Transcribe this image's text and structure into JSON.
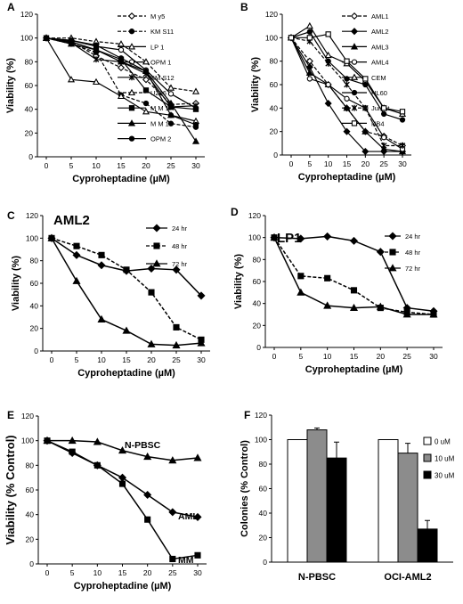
{
  "chart_data": [
    {
      "type": "line",
      "panel_label": "A",
      "xlabel": "Cyproheptadine (µM)",
      "ylabel": "Viability (%)",
      "xlim": [
        0,
        30
      ],
      "ylim": [
        0,
        120
      ],
      "xticks": [
        0,
        5,
        10,
        15,
        20,
        25,
        30
      ],
      "yticks": [
        0,
        20,
        40,
        60,
        80,
        100,
        120
      ],
      "legend_position": "right",
      "x": [
        0,
        5,
        10,
        15,
        20,
        25,
        30
      ],
      "series": [
        {
          "name": "M y5",
          "marker": "diamond-open",
          "dash": true,
          "values": [
            100,
            97,
            85,
            75,
            65,
            44,
            45
          ]
        },
        {
          "name": "KM S11",
          "marker": "circle-filled",
          "dash": true,
          "values": [
            100,
            95,
            88,
            52,
            45,
            28,
            25
          ]
        },
        {
          "name": "LP 1",
          "marker": "triangle-open",
          "dash": false,
          "values": [
            100,
            65,
            63,
            51,
            38,
            35,
            30
          ]
        },
        {
          "name": "OPM 1",
          "marker": "circle-open",
          "dash": false,
          "values": [
            100,
            98,
            93,
            90,
            73,
            53,
            41
          ]
        },
        {
          "name": "KM S12",
          "marker": "star",
          "dash": false,
          "values": [
            100,
            96,
            82,
            80,
            70,
            42,
            43
          ]
        },
        {
          "name": "U266",
          "marker": "triangle-open",
          "dash": true,
          "values": [
            100,
            100,
            97,
            95,
            80,
            58,
            55
          ]
        },
        {
          "name": "M M 1R",
          "marker": "square-filled",
          "dash": false,
          "values": [
            100,
            97,
            90,
            82,
            56,
            42,
            40
          ]
        },
        {
          "name": "M M 1S",
          "marker": "triangle-filled",
          "dash": false,
          "values": [
            100,
            95,
            90,
            80,
            72,
            45,
            13
          ]
        },
        {
          "name": "OPM 2",
          "marker": "circle-filled",
          "dash": false,
          "values": [
            100,
            98,
            94,
            83,
            72,
            35,
            27
          ]
        }
      ]
    },
    {
      "type": "line",
      "panel_label": "B",
      "xlabel": "Cyproheptadine (µM)",
      "ylabel": "Viability (%)",
      "xlim": [
        0,
        30
      ],
      "ylim": [
        0,
        120
      ],
      "xticks": [
        0,
        5,
        10,
        15,
        20,
        25,
        30
      ],
      "yticks": [
        0,
        20,
        40,
        60,
        80,
        100,
        120
      ],
      "legend_position": "right",
      "x": [
        0,
        5,
        10,
        15,
        20,
        25,
        30
      ],
      "series": [
        {
          "name": "AML1",
          "marker": "diamond-open",
          "dash": true,
          "values": [
            100,
            80,
            60,
            40,
            20,
            16,
            8
          ]
        },
        {
          "name": "AML2",
          "marker": "diamond-filled",
          "dash": false,
          "values": [
            100,
            75,
            44,
            20,
            3,
            3,
            3
          ]
        },
        {
          "name": "AML3",
          "marker": "triangle-filled",
          "dash": false,
          "values": [
            100,
            70,
            60,
            40,
            20,
            5,
            3
          ]
        },
        {
          "name": "AML4",
          "marker": "circle-open",
          "dash": false,
          "values": [
            100,
            65,
            60,
            48,
            40,
            15,
            5
          ]
        },
        {
          "name": "CEM",
          "marker": "triangle-open",
          "dash": false,
          "values": [
            100,
            110,
            85,
            78,
            63,
            40,
            35
          ]
        },
        {
          "name": "HL60",
          "marker": "circle-filled",
          "dash": false,
          "values": [
            100,
            105,
            80,
            65,
            60,
            35,
            30
          ]
        },
        {
          "name": "Jurkat",
          "marker": "star",
          "dash": true,
          "values": [
            100,
            97,
            78,
            60,
            40,
            8,
            8
          ]
        },
        {
          "name": "NB4",
          "marker": "square-open",
          "dash": false,
          "values": [
            100,
            100,
            103,
            80,
            65,
            40,
            37
          ]
        }
      ]
    },
    {
      "type": "line",
      "panel_label": "C",
      "title": "AML2",
      "xlabel": "Cyproheptadine (µM)",
      "ylabel": "Viability (%)",
      "xlim": [
        0,
        30
      ],
      "ylim": [
        0,
        120
      ],
      "xticks": [
        0,
        5,
        10,
        15,
        20,
        25,
        30
      ],
      "yticks": [
        0,
        20,
        40,
        60,
        80,
        100,
        120
      ],
      "legend_position": "top-right",
      "x": [
        0,
        5,
        10,
        15,
        20,
        25,
        30
      ],
      "series": [
        {
          "name": "24 hr",
          "marker": "diamond-filled",
          "dash": false,
          "values": [
            100,
            85,
            76,
            71,
            73,
            72,
            49
          ]
        },
        {
          "name": "48 hr",
          "marker": "square-filled",
          "dash": true,
          "values": [
            100,
            93,
            85,
            72,
            52,
            21,
            10
          ]
        },
        {
          "name": "72 hr",
          "marker": "triangle-filled",
          "dash": false,
          "values": [
            100,
            62,
            28,
            18,
            6,
            5,
            7
          ]
        }
      ]
    },
    {
      "type": "line",
      "panel_label": "D",
      "title": "LP1",
      "xlabel": "Cyproheptadine (µM)",
      "ylabel": "Viability (%)",
      "xlim": [
        0,
        30
      ],
      "ylim": [
        0,
        120
      ],
      "xticks": [
        0,
        5,
        10,
        15,
        20,
        25,
        30
      ],
      "yticks": [
        0,
        20,
        40,
        60,
        80,
        100,
        120
      ],
      "legend_position": "top-right",
      "x": [
        0,
        5,
        10,
        15,
        20,
        25,
        30
      ],
      "series": [
        {
          "name": "24 hr",
          "marker": "diamond-filled",
          "dash": false,
          "values": [
            100,
            99,
            101,
            97,
            87,
            36,
            33
          ]
        },
        {
          "name": "48 hr",
          "marker": "square-filled",
          "dash": true,
          "values": [
            100,
            65,
            63,
            52,
            36,
            32,
            30
          ]
        },
        {
          "name": "72 hr",
          "marker": "triangle-filled",
          "dash": false,
          "values": [
            100,
            50,
            38,
            36,
            37,
            30,
            30
          ]
        }
      ]
    },
    {
      "type": "line",
      "panel_label": "E",
      "xlabel": "Cyproheptadine (µM)",
      "ylabel": "Viability (% Control)",
      "xlim": [
        0,
        30
      ],
      "ylim": [
        0,
        120
      ],
      "xticks": [
        0,
        5,
        10,
        15,
        20,
        25,
        30
      ],
      "yticks": [
        0,
        20,
        40,
        60,
        80,
        100,
        120
      ],
      "legend_position": "inline-labels",
      "x": [
        0,
        5,
        10,
        15,
        20,
        25,
        30
      ],
      "series": [
        {
          "name": "N-PBSC",
          "marker": "triangle-filled",
          "dash": false,
          "values": [
            100,
            100,
            99,
            92,
            87,
            84,
            86
          ]
        },
        {
          "name": "AML",
          "marker": "diamond-filled",
          "dash": false,
          "values": [
            100,
            90,
            80,
            70,
            56,
            42,
            38
          ]
        },
        {
          "name": "MM",
          "marker": "square-filled",
          "dash": false,
          "values": [
            100,
            91,
            80,
            65,
            36,
            4,
            7
          ]
        }
      ]
    },
    {
      "type": "bar",
      "panel_label": "F",
      "ylabel": "Colonies (% Control)",
      "ylim": [
        0,
        120
      ],
      "yticks": [
        0,
        20,
        40,
        60,
        80,
        100,
        120
      ],
      "legend_position": "top-right",
      "categories": [
        "N-PBSC",
        "OCI-AML2"
      ],
      "series": [
        {
          "name": "0 uM",
          "color": "#ffffff",
          "values": [
            100,
            100
          ],
          "errors": [
            0,
            0
          ]
        },
        {
          "name": "10 uM",
          "color": "#8c8c8c",
          "values": [
            108,
            89
          ],
          "errors": [
            1.5,
            8
          ]
        },
        {
          "name": "30 uM",
          "color": "#000000",
          "values": [
            85,
            27
          ],
          "errors": [
            13,
            7
          ]
        }
      ]
    }
  ]
}
